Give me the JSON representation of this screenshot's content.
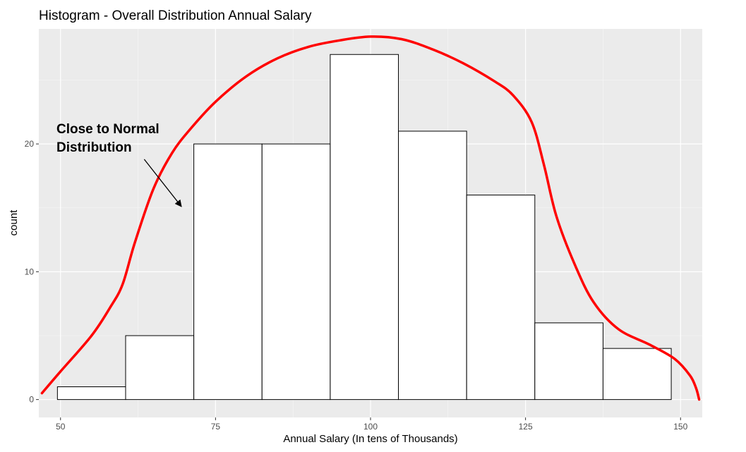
{
  "chart_data": {
    "type": "bar",
    "title": "Histogram - Overall Distribution Annual Salary",
    "xlabel": "Annual Salary (In tens of Thousands)",
    "ylabel": "count",
    "xlim": [
      46.5,
      153.5
    ],
    "ylim": [
      -1.4,
      29
    ],
    "x_ticks": [
      50,
      75,
      100,
      125,
      150
    ],
    "y_ticks": [
      0,
      10,
      20
    ],
    "grid": true,
    "background_color": "#ebebeb",
    "bar_fill": "#ffffff",
    "bar_outline": "#000000",
    "bins": [
      {
        "start": 49.5,
        "end": 60.5,
        "count": 1
      },
      {
        "start": 60.5,
        "end": 71.5,
        "count": 5
      },
      {
        "start": 71.5,
        "end": 82.5,
        "count": 20
      },
      {
        "start": 82.5,
        "end": 93.5,
        "count": 20
      },
      {
        "start": 93.5,
        "end": 104.5,
        "count": 27
      },
      {
        "start": 104.5,
        "end": 115.5,
        "count": 21
      },
      {
        "start": 115.5,
        "end": 126.5,
        "count": 16
      },
      {
        "start": 126.5,
        "end": 137.5,
        "count": 6
      },
      {
        "start": 137.5,
        "end": 148.5,
        "count": 4
      }
    ],
    "overlay_curve": {
      "color": "#ff0000",
      "points": [
        [
          47,
          0.5
        ],
        [
          50,
          2.2
        ],
        [
          55,
          5.0
        ],
        [
          58,
          7.2
        ],
        [
          60,
          9.0
        ],
        [
          62,
          12.3
        ],
        [
          65,
          16.5
        ],
        [
          68,
          19.3
        ],
        [
          71,
          21.2
        ],
        [
          75,
          23.3
        ],
        [
          80,
          25.3
        ],
        [
          85,
          26.7
        ],
        [
          90,
          27.6
        ],
        [
          95,
          28.1
        ],
        [
          100,
          28.4
        ],
        [
          105,
          28.2
        ],
        [
          110,
          27.4
        ],
        [
          115,
          26.3
        ],
        [
          120,
          24.9
        ],
        [
          123,
          23.8
        ],
        [
          126,
          21.7
        ],
        [
          128,
          18.3
        ],
        [
          130,
          14.3
        ],
        [
          133,
          10.5
        ],
        [
          136,
          7.6
        ],
        [
          140,
          5.5
        ],
        [
          145,
          4.3
        ],
        [
          149,
          3.2
        ],
        [
          151.5,
          1.9
        ],
        [
          152.5,
          0.9
        ],
        [
          153,
          0
        ]
      ]
    },
    "annotation": {
      "text_lines": [
        "Close to Normal",
        "Distribution"
      ],
      "arrow_from": [
        63.5,
        18.8
      ],
      "arrow_to": [
        69.5,
        15.1
      ]
    }
  }
}
